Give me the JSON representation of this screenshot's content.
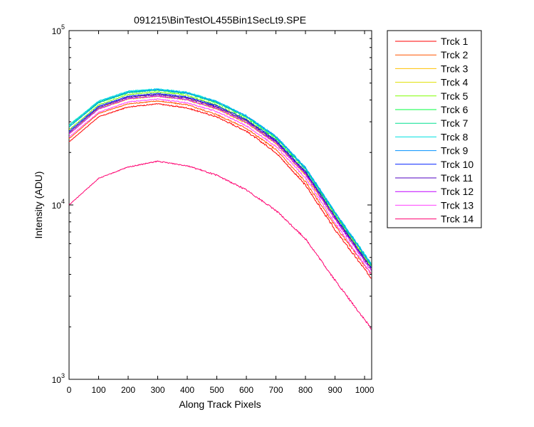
{
  "chart_data": {
    "type": "line",
    "title": "091215\\BinTestOL455Bin1SecLt9.SPE",
    "xlabel": "Along Track Pixels",
    "ylabel": "Intensity (ADU)",
    "xlim": [
      0,
      1024
    ],
    "ylim": [
      1000,
      100000
    ],
    "yscale": "log",
    "x_ticks": [
      0,
      100,
      200,
      300,
      400,
      500,
      600,
      700,
      800,
      900,
      1000
    ],
    "y_ticks": [
      {
        "value": 1000,
        "base": "10",
        "exp": "3"
      },
      {
        "value": 10000,
        "base": "10",
        "exp": "4"
      },
      {
        "value": 100000,
        "base": "10",
        "exp": "5"
      }
    ],
    "grid": false,
    "legend_position": "outside-right",
    "series": [
      {
        "name": "Trck 1",
        "color": "#ff0000",
        "x": [
          0,
          100,
          200,
          300,
          400,
          500,
          600,
          700,
          800,
          900,
          1023
        ],
        "y": [
          23000,
          32000,
          36500,
          38000,
          36000,
          32000,
          26500,
          20000,
          13000,
          7200,
          3800
        ]
      },
      {
        "name": "Trck 2",
        "color": "#ff5500",
        "x": [
          0,
          100,
          200,
          300,
          400,
          500,
          600,
          700,
          800,
          900,
          1023
        ],
        "y": [
          24000,
          33500,
          38000,
          39500,
          37500,
          33000,
          27500,
          20800,
          13600,
          7600,
          4000
        ]
      },
      {
        "name": "Trck 3",
        "color": "#ffc000",
        "x": [
          0,
          100,
          200,
          300,
          400,
          500,
          600,
          700,
          800,
          900,
          1023
        ],
        "y": [
          25500,
          35500,
          40500,
          42000,
          40000,
          35500,
          29500,
          22500,
          14800,
          8300,
          4300
        ]
      },
      {
        "name": "Trck 4",
        "color": "#e0e000",
        "x": [
          0,
          100,
          200,
          300,
          400,
          500,
          600,
          700,
          800,
          900,
          1023
        ],
        "y": [
          26000,
          36000,
          41500,
          43000,
          41000,
          36300,
          30200,
          23000,
          15200,
          8500,
          4400
        ]
      },
      {
        "name": "Trck 5",
        "color": "#80ff00",
        "x": [
          0,
          100,
          200,
          300,
          400,
          500,
          600,
          700,
          800,
          900,
          1023
        ],
        "y": [
          27000,
          37500,
          43000,
          44500,
          42500,
          37500,
          31000,
          23600,
          15600,
          8700,
          4450
        ]
      },
      {
        "name": "Trck 6",
        "color": "#00ff40",
        "x": [
          0,
          100,
          200,
          300,
          400,
          500,
          600,
          700,
          800,
          900,
          1023
        ],
        "y": [
          28000,
          38500,
          44000,
          45500,
          43500,
          38500,
          31800,
          24200,
          16000,
          8900,
          4500
        ]
      },
      {
        "name": "Trck 7",
        "color": "#00e090",
        "x": [
          0,
          100,
          200,
          300,
          400,
          500,
          600,
          700,
          800,
          900,
          1023
        ],
        "y": [
          28500,
          39000,
          44500,
          46000,
          44000,
          39000,
          32200,
          24500,
          16200,
          9000,
          4550
        ]
      },
      {
        "name": "Trck 8",
        "color": "#00e0e0",
        "x": [
          0,
          100,
          200,
          300,
          400,
          500,
          600,
          700,
          800,
          900,
          1023
        ],
        "y": [
          28800,
          39500,
          45000,
          46300,
          44300,
          39300,
          32500,
          24800,
          16400,
          9100,
          4600
        ]
      },
      {
        "name": "Trck 9",
        "color": "#0090ff",
        "x": [
          0,
          100,
          200,
          300,
          400,
          500,
          600,
          700,
          800,
          900,
          1023
        ],
        "y": [
          28000,
          38800,
          44300,
          45800,
          43800,
          39000,
          32300,
          24700,
          16300,
          9050,
          4550
        ]
      },
      {
        "name": "Trck 10",
        "color": "#0020ff",
        "x": [
          0,
          100,
          200,
          300,
          400,
          500,
          600,
          700,
          800,
          900,
          1023
        ],
        "y": [
          26500,
          36800,
          42000,
          43600,
          41600,
          37000,
          30800,
          23500,
          15500,
          8600,
          4350
        ]
      },
      {
        "name": "Trck 11",
        "color": "#5000c0",
        "x": [
          0,
          100,
          200,
          300,
          400,
          500,
          600,
          700,
          800,
          900,
          1023
        ],
        "y": [
          26000,
          36300,
          41500,
          43000,
          41000,
          36500,
          30400,
          23200,
          15300,
          8500,
          4300
        ]
      },
      {
        "name": "Trck 12",
        "color": "#c000ff",
        "x": [
          0,
          100,
          200,
          300,
          400,
          500,
          600,
          700,
          800,
          900,
          1023
        ],
        "y": [
          25500,
          35500,
          40800,
          42200,
          40200,
          35800,
          29800,
          22700,
          15000,
          8300,
          4200
        ]
      },
      {
        "name": "Trck 13",
        "color": "#ff40ff",
        "x": [
          0,
          100,
          200,
          300,
          400,
          500,
          600,
          700,
          800,
          900,
          1023
        ],
        "y": [
          24500,
          34000,
          39000,
          40500,
          38500,
          34300,
          28500,
          21700,
          14300,
          7900,
          4000
        ]
      },
      {
        "name": "Trck 14",
        "color": "#ff0070",
        "x": [
          0,
          100,
          200,
          300,
          400,
          500,
          600,
          700,
          800,
          900,
          1023
        ],
        "y": [
          10000,
          14200,
          16500,
          17800,
          16800,
          14800,
          12200,
          9300,
          6400,
          3700,
          1950
        ]
      }
    ]
  }
}
